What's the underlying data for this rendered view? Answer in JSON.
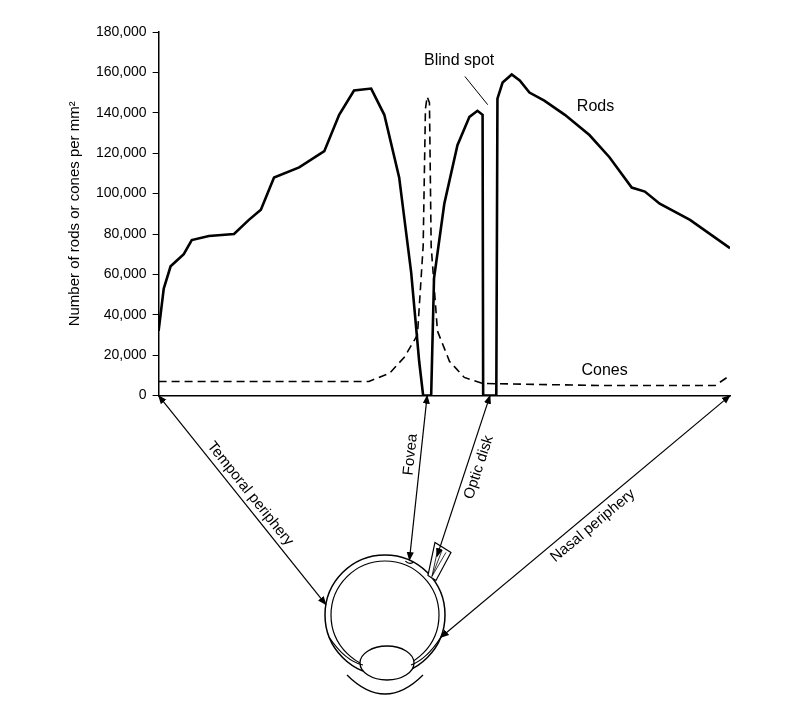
{
  "chart_data": {
    "type": "line",
    "y_label": "Number of rods or cones per mm²",
    "xlim": [
      0,
      100
    ],
    "ylim": [
      0,
      180000
    ],
    "yticks": [
      0,
      {
        "value": 20000,
        "label": "20,000"
      },
      {
        "value": 40000,
        "label": "40,000"
      },
      {
        "value": 60000,
        "label": "60,000"
      },
      {
        "value": 80000,
        "label": "80,000"
      },
      {
        "value": 100000,
        "label": "100,000"
      },
      {
        "value": 120000,
        "label": "120,000"
      },
      {
        "value": 140000,
        "label": "140,000"
      },
      {
        "value": 160000,
        "label": "160,000"
      },
      {
        "value": 180000,
        "label": "180,000"
      }
    ],
    "grid": false,
    "tick_labels": "y",
    "series": [
      {
        "name": "Rods",
        "color": "#000000",
        "line_style": "solid",
        "x": [
          0,
          0.9,
          2.1,
          4.4,
          5.8,
          8.8,
          13.2,
          15.8,
          17.9,
          20.2,
          24.6,
          29,
          31.6,
          34.2,
          37.2,
          39.5,
          42.1,
          44.2,
          45.6,
          46.3,
          47.7,
          48.2,
          50,
          52.3,
          54.4,
          55.8,
          56.7,
          56.8,
          59.1,
          59.3,
          60.2,
          61.8,
          63.2,
          64.9,
          67.5,
          71.1,
          75.4,
          78.9,
          82.8,
          85.1,
          87.7,
          93,
          100
        ],
        "values": [
          32000,
          53000,
          64000,
          70000,
          77000,
          79000,
          80000,
          87000,
          92000,
          108000,
          113000,
          121000,
          139000,
          151000,
          152000,
          139000,
          108000,
          61000,
          17000,
          0,
          0,
          58000,
          95000,
          124000,
          138000,
          141000,
          139000,
          0,
          0,
          147000,
          155000,
          159000,
          156000,
          150000,
          146000,
          139000,
          129000,
          118000,
          103000,
          101000,
          95000,
          87000,
          73000
        ]
      },
      {
        "name": "Cones",
        "color": "#000000",
        "line_style": "dashed",
        "x": [
          0,
          36.8,
          40.4,
          43,
          45.3,
          46.3,
          46.7,
          47,
          47.4,
          47.7,
          48.8,
          50.9,
          53.5,
          56.7,
          77.2,
          97.4,
          100
        ],
        "values": [
          7000,
          7000,
          11000,
          19000,
          30000,
          74000,
          142000,
          148000,
          145000,
          74000,
          32000,
          17000,
          9000,
          6000,
          5000,
          5000,
          10000
        ]
      }
    ],
    "annotations": [
      "Blind spot"
    ]
  },
  "diagram": {
    "labels": [
      "Temporal periphery",
      "Fovea",
      "Optic disk",
      "Nasal periphery"
    ]
  }
}
